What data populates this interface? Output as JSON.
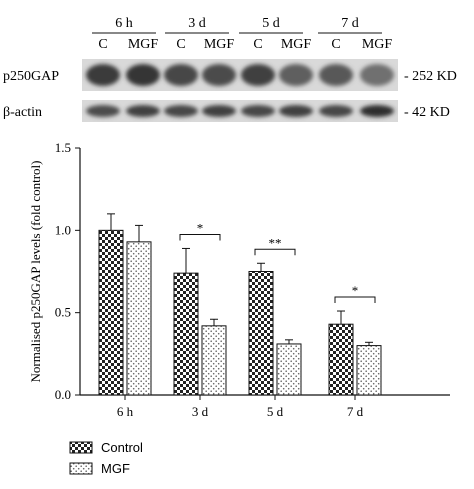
{
  "blot": {
    "timepoints": [
      "6 h",
      "3 d",
      "5 d",
      "7 d"
    ],
    "lanes": [
      "C",
      "MGF",
      "C",
      "MGF",
      "C",
      "MGF",
      "C",
      "MGF"
    ],
    "rows": [
      {
        "label": "p250GAP",
        "size": "252 KD"
      },
      {
        "label": "β-actin",
        "size": "42 KD"
      }
    ]
  },
  "chart_data": {
    "type": "bar",
    "categories": [
      "6 h",
      "3 d",
      "5 d",
      "7 d"
    ],
    "series": [
      {
        "name": "Control",
        "values": [
          1.0,
          0.74,
          0.75,
          0.43
        ],
        "errors": [
          0.1,
          0.15,
          0.05,
          0.08
        ]
      },
      {
        "name": "MGF",
        "values": [
          0.93,
          0.42,
          0.31,
          0.3
        ],
        "errors": [
          0.1,
          0.04,
          0.025,
          0.02
        ]
      }
    ],
    "ylabel": "Normalised p250GAP levels (fold control)",
    "ylim": [
      0,
      1.5
    ],
    "yticks": [
      "0.0",
      "0.5",
      "1.0",
      "1.5"
    ],
    "significance": [
      "",
      "*",
      "**",
      "*"
    ],
    "legend_position": "bottom-left",
    "colors": {
      "control": "#222222",
      "mgf": "#666666"
    }
  }
}
